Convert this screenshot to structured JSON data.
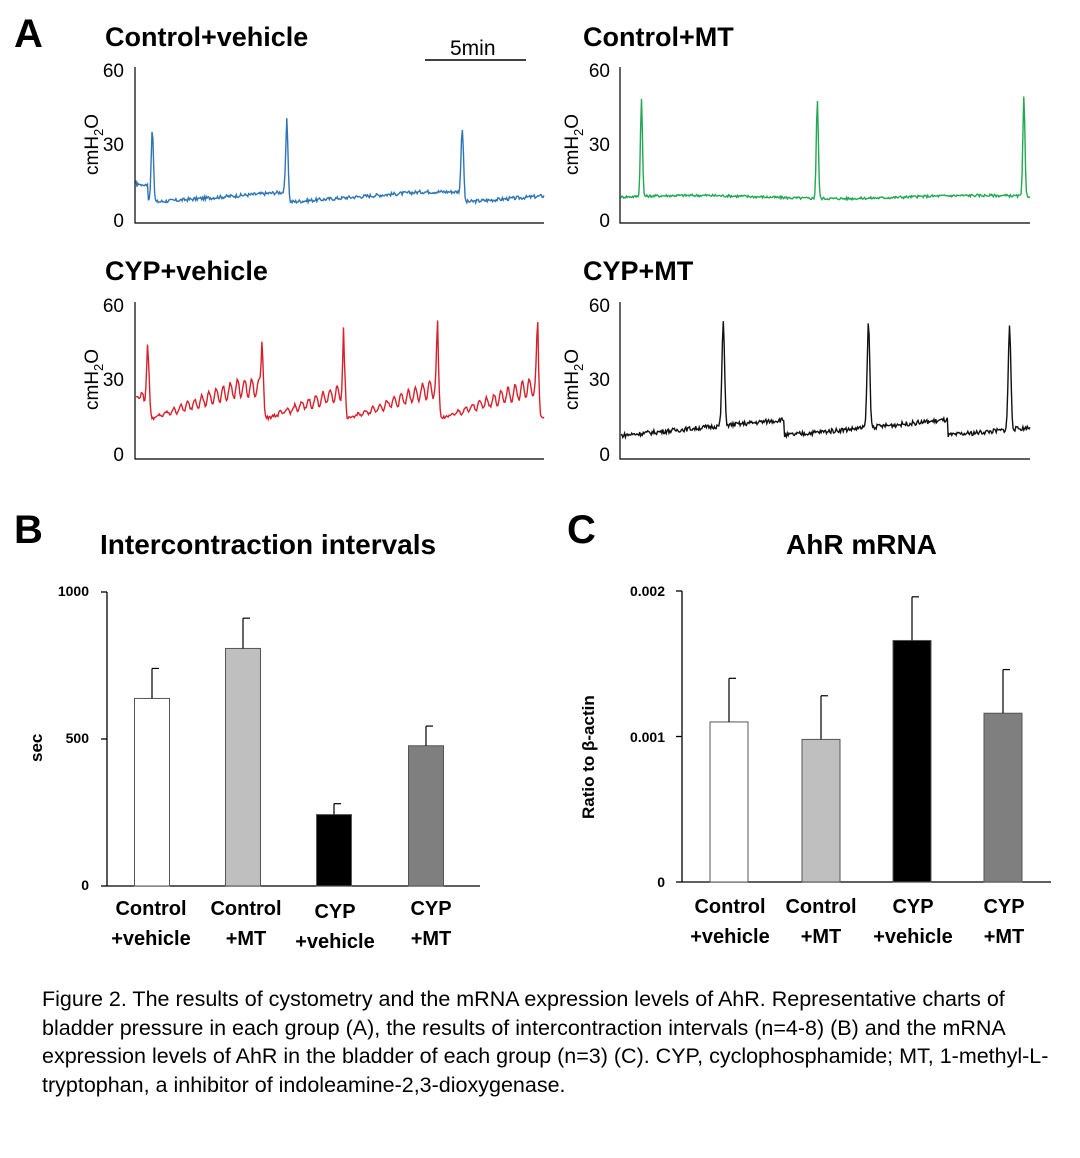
{
  "panelA": {
    "letter": "A",
    "scale_bar_label": "5min",
    "traces": [
      {
        "title": "Control+vehicle",
        "color": "#2e75b6",
        "ylabel_base": "cmH",
        "ylabel_sub": "2",
        "ylabel_end": "O",
        "yticks": [
          "60",
          "30",
          "0"
        ]
      },
      {
        "title": "Control+MT",
        "color": "#22a852",
        "ylabel_base": "cmH",
        "ylabel_sub": "2",
        "ylabel_end": "O",
        "yticks": [
          "60",
          "30",
          "0"
        ]
      },
      {
        "title": "CYP+vehicle",
        "color": "#d9202a",
        "ylabel_base": "cmH",
        "ylabel_sub": "2",
        "ylabel_end": "O",
        "yticks": [
          "60",
          "30",
          "0"
        ]
      },
      {
        "title": "CYP+MT",
        "color": "#111111",
        "ylabel_base": "cmH",
        "ylabel_sub": "2",
        "ylabel_end": "O",
        "yticks": [
          "60",
          "30",
          "0"
        ]
      }
    ]
  },
  "panelB": {
    "letter": "B",
    "chart_data": {
      "type": "bar",
      "title": "Intercontraction intervals",
      "ylabel": "sec",
      "ylim": [
        0,
        1000
      ],
      "yticks": [
        "1000",
        "500",
        "0"
      ],
      "categories": [
        [
          "Control",
          "+vehicle"
        ],
        [
          "Control",
          "+MT"
        ],
        [
          "CYP",
          "+vehicle"
        ],
        [
          "CYP",
          "+MT"
        ]
      ],
      "values": [
        638,
        808,
        243,
        477
      ],
      "errors": [
        102,
        103,
        37,
        67
      ],
      "colors": [
        "#ffffff",
        "#bfbfbf",
        "#000000",
        "#7f7f7f"
      ]
    }
  },
  "panelC": {
    "letter": "C",
    "chart_data": {
      "type": "bar",
      "title": "AhR mRNA",
      "ylabel": "Ratio to β-actin",
      "ylim": [
        0,
        0.002
      ],
      "yticks": [
        "0.002",
        "0.001",
        "0"
      ],
      "categories": [
        [
          "Control",
          "+vehicle"
        ],
        [
          "Control",
          "+MT"
        ],
        [
          "CYP",
          "+vehicle"
        ],
        [
          "CYP",
          "+MT"
        ]
      ],
      "values": [
        0.0011,
        0.00098,
        0.00166,
        0.00116
      ],
      "errors": [
        0.0003,
        0.0003,
        0.0003,
        0.0003
      ],
      "colors": [
        "#ffffff",
        "#bfbfbf",
        "#000000",
        "#7f7f7f"
      ]
    }
  },
  "caption": "Figure 2. The results of cystometry and the mRNA expression levels of AhR. Representative charts of bladder pressure in each group (A), the results of intercontraction intervals (n=4-8) (B) and the mRNA expression levels of AhR in the bladder of each group (n=3) (C). CYP, cyclophosphamide; MT, 1-methyl-L-tryptophan, a inhibitor of indoleamine-2,3-dioxygenase."
}
